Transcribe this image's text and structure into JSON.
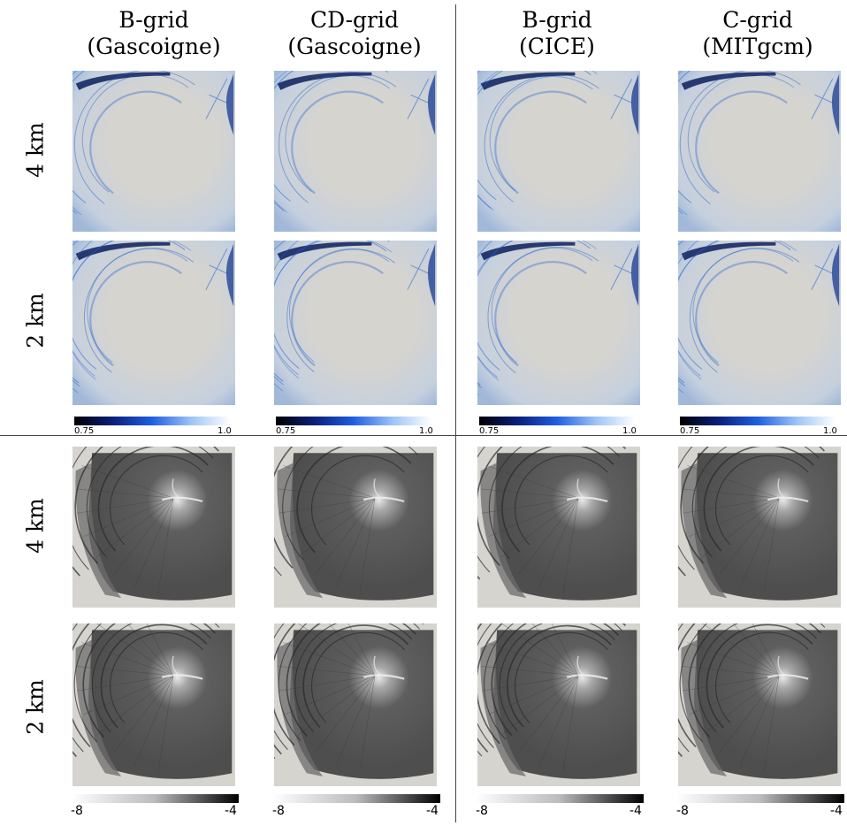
{
  "figure": {
    "columns": [
      {
        "line1": "B-grid",
        "line2": "(Gascoigne)"
      },
      {
        "line1": "CD-grid",
        "line2": "(Gascoigne)"
      },
      {
        "line1": "B-grid",
        "line2": "(CICE)"
      },
      {
        "line1": "C-grid",
        "line2": "(MITgcm)"
      }
    ],
    "rows_top": [
      "4 km",
      "2 km"
    ],
    "rows_bottom": [
      "4 km",
      "2 km"
    ],
    "colorbar_top": {
      "min": "0.75",
      "max": "1.0",
      "colors": [
        "#000000",
        "#0a1f7a",
        "#1f5fe0",
        "#9ec3f5",
        "#ffffff"
      ]
    },
    "colorbar_bottom": {
      "min": "-8",
      "max": "-4",
      "colors": [
        "#ffffff",
        "#bbbbbb",
        "#000000"
      ]
    },
    "panel_background": "#d6d4cf",
    "top_panel_accent": "#1a5bd0",
    "bottom_panel_fill": "#5e5e5e"
  }
}
